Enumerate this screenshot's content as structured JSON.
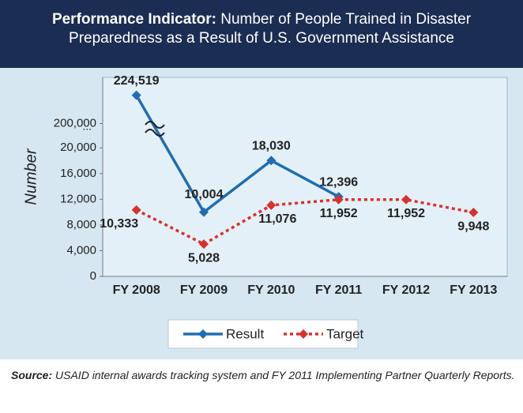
{
  "chart_data": {
    "type": "line",
    "title_label": "Performance Indicator:",
    "title": "Number of People Trained in Disaster Preparedness as a Result of U.S. Government Assistance",
    "y_label": "Number",
    "categories": [
      "FY 2008",
      "FY 2009",
      "FY 2010",
      "FY 2011",
      "FY 2012",
      "FY 2013"
    ],
    "series": [
      {
        "name": "Result",
        "color": "#1f6db3",
        "marker": "diamond",
        "dash": false,
        "values": [
          224519,
          10004,
          18030,
          12396,
          null,
          null
        ],
        "value_labels": [
          "224,519",
          "10,004",
          "18,030",
          "12,396",
          null,
          null
        ]
      },
      {
        "name": "Target",
        "color": "#d8322c",
        "marker": "diamond",
        "dash": true,
        "values": [
          10333,
          5028,
          11076,
          11952,
          11952,
          9948
        ],
        "value_labels": [
          "10,333",
          "5,028",
          "11,076",
          "11,952",
          "11,952",
          "9,948"
        ]
      }
    ],
    "ylim": [
      0,
      240000
    ],
    "y_break": [
      22000,
      190000
    ],
    "y_break_label": "...",
    "yticks": [
      0,
      {
        "value": 4000,
        "label": "4,000"
      },
      {
        "value": 8000,
        "label": "8,000"
      },
      {
        "value": 12000,
        "label": "12,000"
      },
      {
        "value": 16000,
        "label": "16,000"
      },
      {
        "value": 20000,
        "label": "20,000"
      },
      {
        "value": 200000,
        "label": "200,000"
      }
    ],
    "legend": "bottom",
    "source_label": "Source:",
    "source": "USAID internal awards tracking system and FY 2011 Implementing Partner Quarterly Reports."
  }
}
